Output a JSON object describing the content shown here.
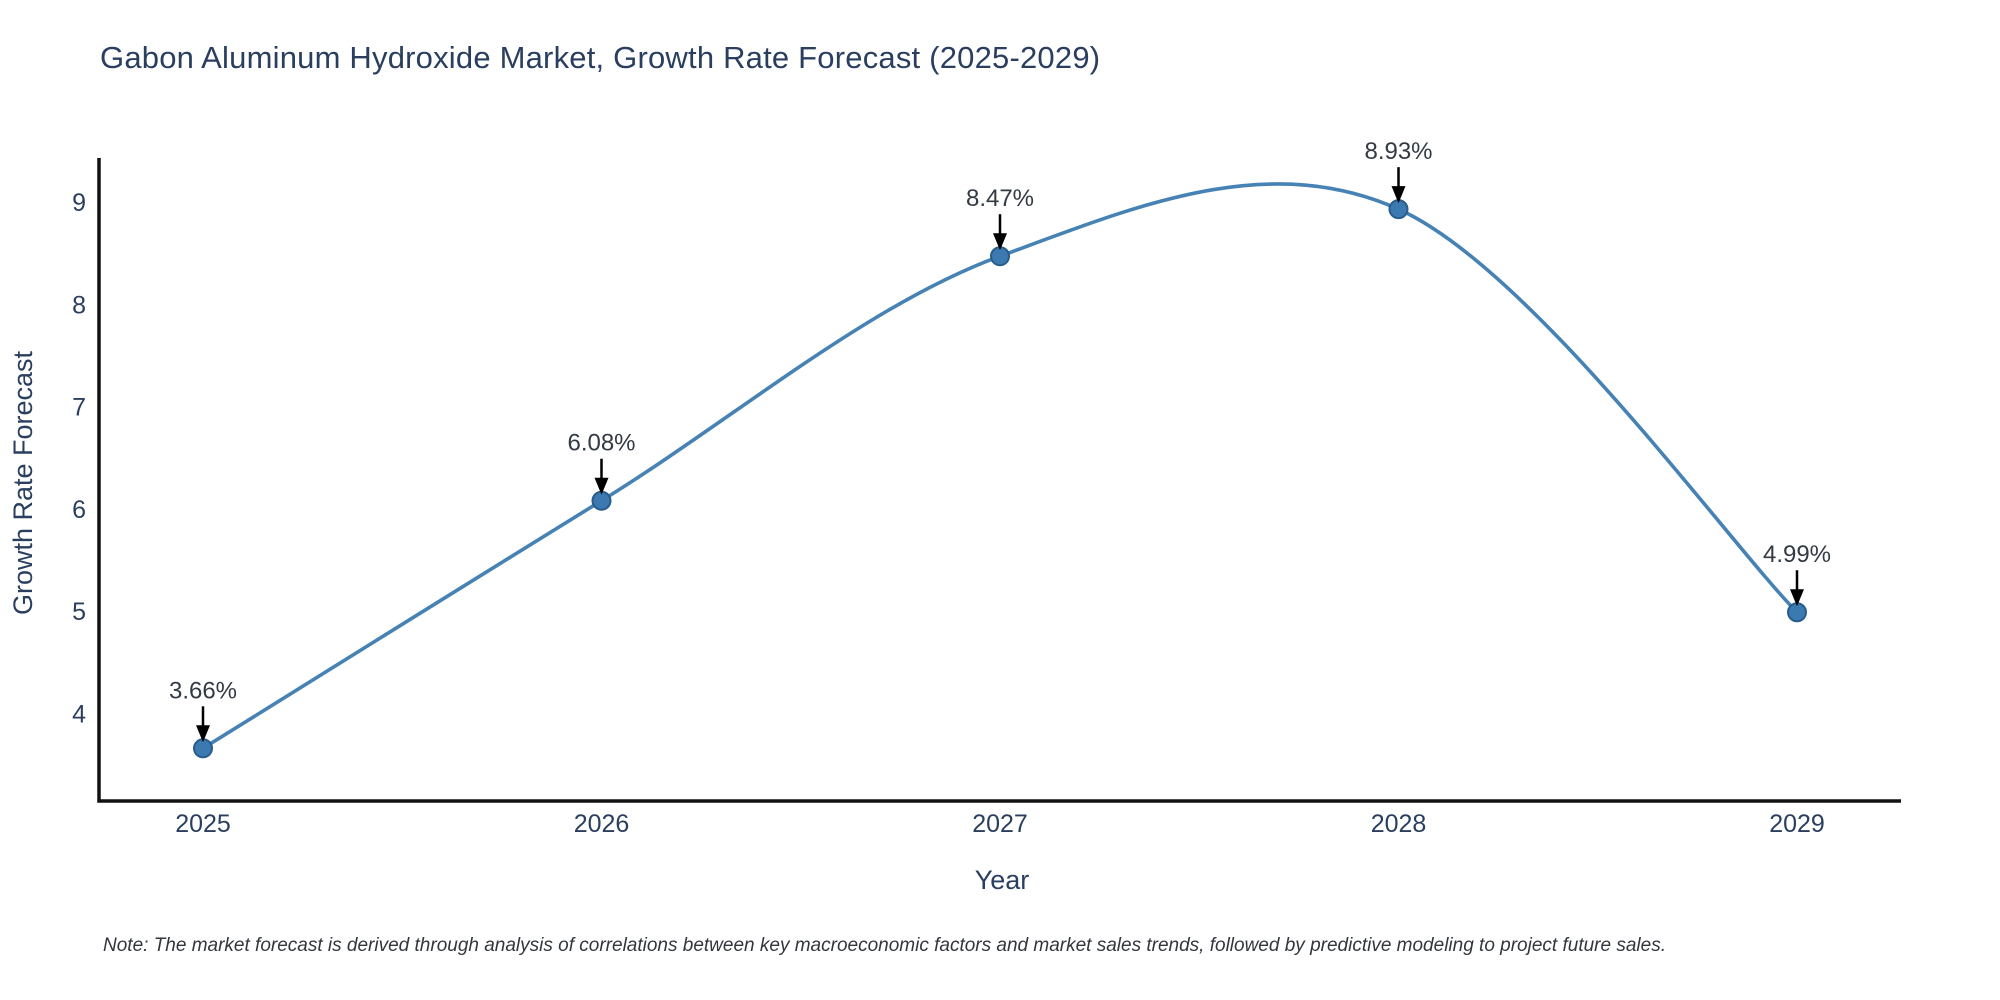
{
  "title": "Gabon Aluminum Hydroxide Market, Growth Rate Forecast (2025-2029)",
  "note": "Note: The market forecast is derived through analysis of correlations between key macroeconomic factors and market sales trends, followed by predictive modeling to project future sales.",
  "chart_data": {
    "type": "line",
    "title": "Gabon Aluminum Hydroxide Market, Growth Rate Forecast (2025-2029)",
    "x": [
      "2025",
      "2026",
      "2027",
      "2028",
      "2029"
    ],
    "values": [
      3.66,
      6.08,
      8.47,
      8.93,
      4.99
    ],
    "point_labels": [
      "3.66%",
      "6.08%",
      "8.47%",
      "8.93%",
      "4.99%"
    ],
    "xlabel": "Year",
    "ylabel": "Growth Rate Forecast",
    "yticks": [
      4,
      5,
      6,
      7,
      8,
      9
    ],
    "ylim": [
      3.145,
      9.43
    ],
    "line_shape": "spline",
    "grid": false,
    "legend": "none",
    "colors": {
      "line": "#4682b4",
      "marker_fill": "#3c79b0",
      "marker_edge": "#275d8c",
      "axis": "#111111",
      "tick_text": "#2a3f5f",
      "title_text": "#2a3f5f",
      "annotation_text": "#333a44",
      "arrow": "#000000",
      "background": "#ffffff"
    }
  }
}
